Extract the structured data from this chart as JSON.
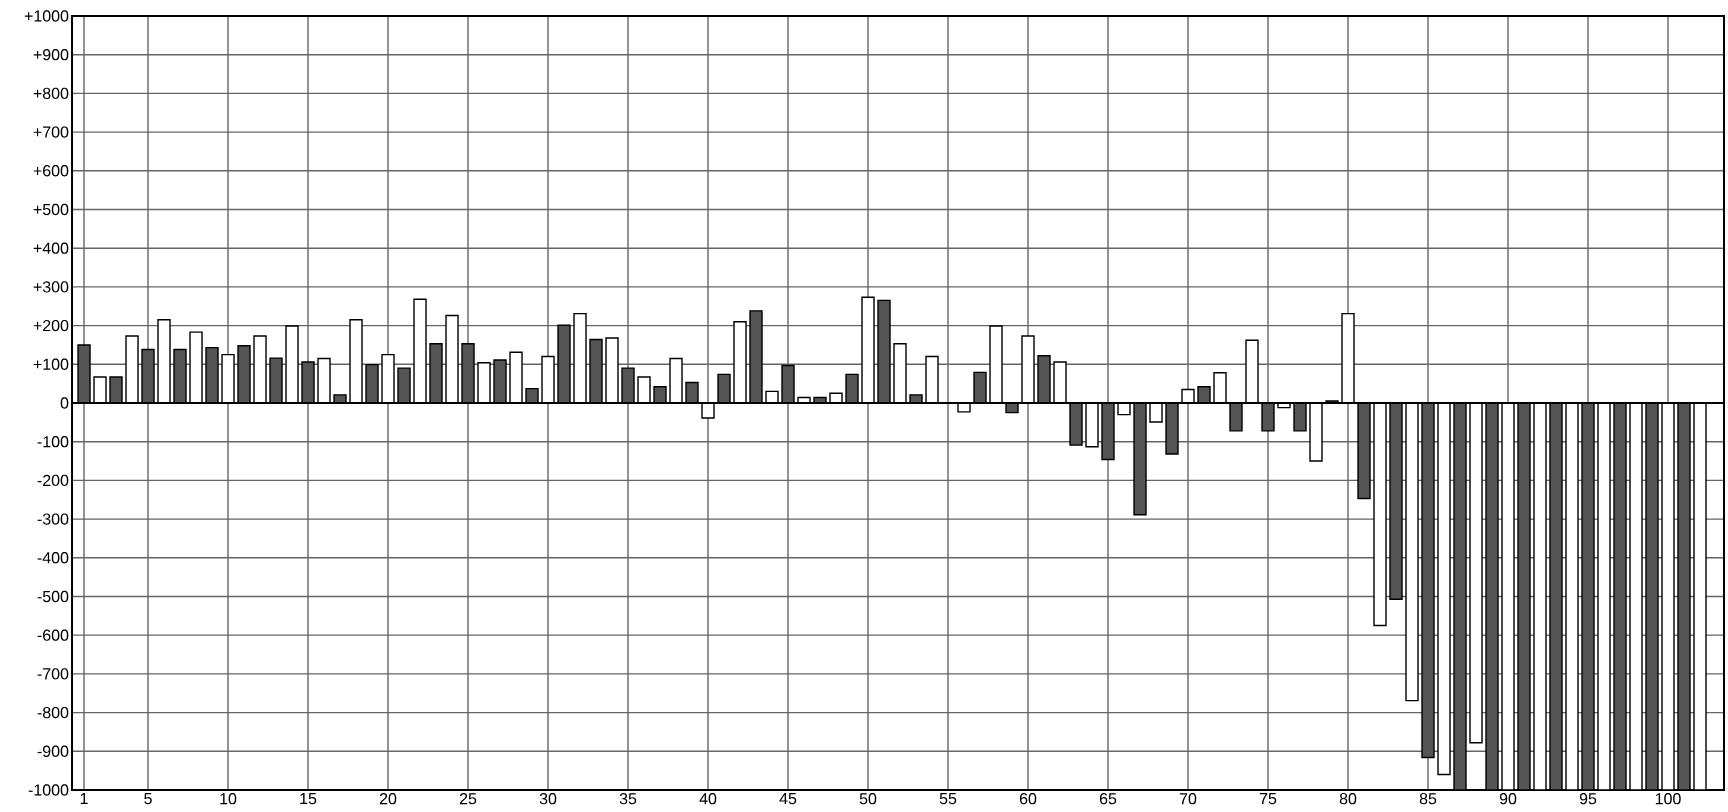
{
  "chart_data": {
    "type": "bar",
    "categories": [
      "1",
      null,
      null,
      null,
      "5",
      null,
      null,
      null,
      null,
      "10",
      null,
      null,
      null,
      null,
      "15",
      null,
      null,
      null,
      null,
      "20",
      null,
      null,
      null,
      null,
      "25",
      null,
      null,
      null,
      null,
      "30",
      null,
      null,
      null,
      null,
      "35",
      null,
      null,
      null,
      null,
      "40",
      null,
      null,
      null,
      null,
      "45",
      null,
      null,
      null,
      null,
      "50",
      null,
      null,
      null,
      null,
      "55",
      null,
      null,
      null,
      null,
      "60",
      null,
      null,
      null,
      null,
      "65",
      null,
      null,
      null,
      null,
      "70",
      null,
      null,
      null,
      null,
      "75",
      null,
      null,
      null,
      null,
      "80",
      null,
      null,
      null,
      null,
      "85",
      null,
      null,
      null,
      null,
      "90",
      null,
      null,
      null,
      null,
      "95",
      null,
      null,
      null,
      null,
      "100",
      null,
      null
    ],
    "values": [
      150,
      67,
      67,
      173,
      138,
      215,
      138,
      183,
      143,
      125,
      148,
      173,
      116,
      199,
      106,
      115,
      21,
      215,
      99,
      125,
      90,
      268,
      153,
      226,
      153,
      104,
      111,
      131,
      37,
      120,
      201,
      231,
      164,
      168,
      90,
      67,
      42,
      115,
      53,
      -39,
      74,
      210,
      238,
      30,
      97,
      14,
      14,
      25,
      74,
      273,
      265,
      153,
      21,
      120,
      0,
      -23,
      79,
      199,
      -25,
      173,
      122,
      106,
      -109,
      -113,
      -146,
      -30,
      -289,
      -49,
      -132,
      35,
      42,
      78,
      -72,
      162,
      -72,
      -12,
      -72,
      -150,
      5,
      231,
      -247,
      -575,
      -507,
      -769,
      -916,
      -960,
      -1000,
      -878,
      -1000,
      -1000,
      -1000,
      -1000,
      -1000,
      -1000,
      -1000,
      -1000,
      -1000,
      -1000,
      -1000,
      -1000,
      -1000,
      -1000
    ],
    "colors": [
      "#555555",
      "#ffffff",
      "#555555",
      "#ffffff",
      "#555555",
      "#ffffff",
      "#555555",
      "#ffffff",
      "#555555",
      "#ffffff",
      "#555555",
      "#ffffff",
      "#555555",
      "#ffffff",
      "#555555",
      "#ffffff",
      "#555555",
      "#ffffff",
      "#555555",
      "#ffffff",
      "#555555",
      "#ffffff",
      "#555555",
      "#ffffff",
      "#555555",
      "#ffffff",
      "#555555",
      "#ffffff",
      "#555555",
      "#ffffff",
      "#555555",
      "#ffffff",
      "#555555",
      "#ffffff",
      "#555555",
      "#ffffff",
      "#555555",
      "#ffffff",
      "#555555",
      "#ffffff",
      "#555555",
      "#ffffff",
      "#555555",
      "#ffffff",
      "#555555",
      "#ffffff",
      "#555555",
      "#ffffff",
      "#555555",
      "#ffffff",
      "#555555",
      "#ffffff",
      "#555555",
      "#ffffff",
      "#555555",
      "#ffffff",
      "#555555",
      "#ffffff",
      "#555555",
      "#ffffff",
      "#555555",
      "#ffffff",
      "#555555",
      "#ffffff",
      "#555555",
      "#ffffff",
      "#555555",
      "#ffffff",
      "#555555",
      "#ffffff",
      "#555555",
      "#ffffff",
      "#555555",
      "#ffffff",
      "#555555",
      "#ffffff",
      "#555555",
      "#ffffff",
      "#555555",
      "#ffffff",
      "#555555",
      "#ffffff",
      "#555555",
      "#ffffff",
      "#555555",
      "#ffffff",
      "#555555",
      "#ffffff",
      "#555555",
      "#ffffff",
      "#555555",
      "#ffffff",
      "#555555",
      "#ffffff",
      "#555555",
      "#ffffff",
      "#555555",
      "#ffffff",
      "#555555",
      "#ffffff",
      "#555555",
      "#ffffff"
    ],
    "ylim": [
      -1000,
      1000
    ],
    "yticks": [
      -1000,
      -900,
      -800,
      -700,
      -600,
      -500,
      -400,
      -300,
      -200,
      -100,
      0,
      {
        "value": 100,
        "label": "+100"
      },
      {
        "value": 200,
        "label": "+200"
      },
      {
        "value": 300,
        "label": "+300"
      },
      {
        "value": 400,
        "label": "+400"
      },
      {
        "value": 500,
        "label": "+500"
      },
      {
        "value": 600,
        "label": "+600"
      },
      {
        "value": 700,
        "label": "+700"
      },
      {
        "value": 800,
        "label": "+800"
      },
      {
        "value": 900,
        "label": "+900"
      },
      {
        "value": 1000,
        "label": "+1000"
      }
    ],
    "grid": true
  }
}
